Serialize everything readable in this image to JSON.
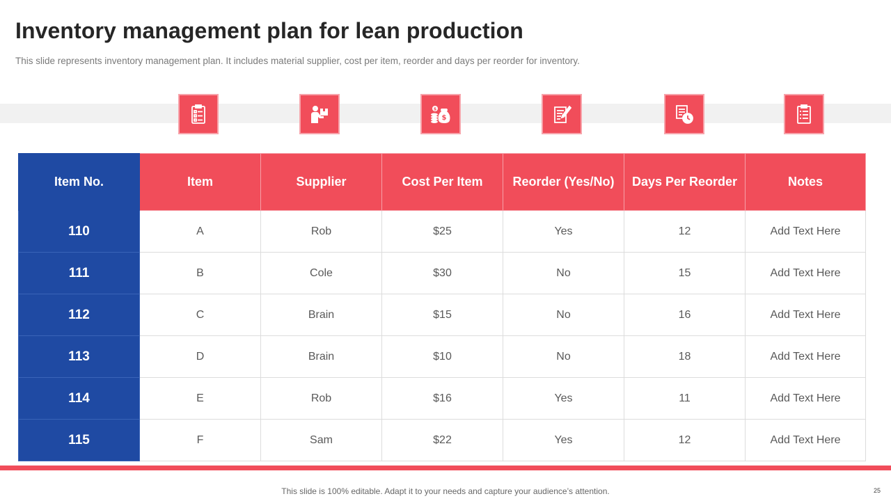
{
  "slide": {
    "title": "Inventory management plan for lean production",
    "subtitle": "This slide represents inventory management plan. It includes material supplier, cost per item, reorder and days per reorder for inventory.",
    "footer": "This slide is 100% editable. Adapt it to your needs and capture your audience’s attention.",
    "page_number": "25"
  },
  "colors": {
    "accent_red": "#f14d5a",
    "accent_blue": "#1f4aa3"
  },
  "icons": [
    "clipboard-checklist-icon",
    "delivery-person-icon",
    "money-bag-coins-icon",
    "document-edit-icon",
    "document-clock-icon",
    "checklist-icon"
  ],
  "table": {
    "headers": [
      "Item No.",
      "Item",
      "Supplier",
      "Cost Per Item",
      "Reorder (Yes/No)",
      "Days Per Reorder",
      "Notes"
    ],
    "rows": [
      [
        "110",
        "A",
        "Rob",
        "$25",
        "Yes",
        "12",
        "Add Text Here"
      ],
      [
        "111",
        "B",
        "Cole",
        "$30",
        "No",
        "15",
        "Add Text Here"
      ],
      [
        "112",
        "C",
        "Brain",
        "$15",
        "No",
        "16",
        "Add Text Here"
      ],
      [
        "113",
        "D",
        "Brain",
        "$10",
        "No",
        "18",
        "Add Text Here"
      ],
      [
        "114",
        "E",
        "Rob",
        "$16",
        "Yes",
        "11",
        "Add Text Here"
      ],
      [
        "115",
        "F",
        "Sam",
        "$22",
        "Yes",
        "12",
        "Add Text Here"
      ]
    ]
  }
}
